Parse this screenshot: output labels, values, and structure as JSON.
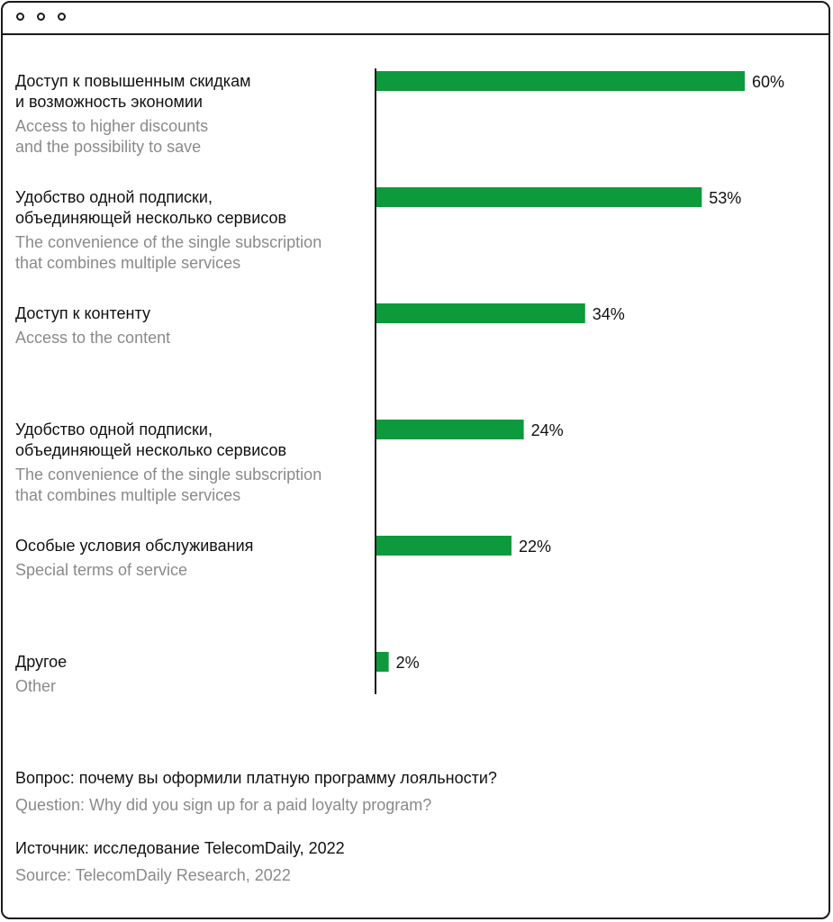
{
  "window": {
    "controls": [
      "dot-1",
      "dot-2",
      "dot-3"
    ]
  },
  "chart_data": {
    "type": "bar",
    "orientation": "horizontal",
    "categories": [
      {
        "ru": "Доступ к повышенным скидкам\nи возможность экономии",
        "en": "Access to higher discounts\nand the possibility to save"
      },
      {
        "ru": "Удобство одной подписки,\nобъединяющей несколько сервисов",
        "en": "The convenience of the single subscription\nthat combines multiple services"
      },
      {
        "ru": "Доступ к контенту",
        "en": "Access to the content"
      },
      {
        "ru": "Удобство одной подписки,\nобъединяющей несколько сервисов",
        "en": "The convenience of the single subscription\nthat combines multiple services"
      },
      {
        "ru": "Особые условия обслуживания",
        "en": "Special terms of service"
      },
      {
        "ru": "Другое",
        "en": "Other"
      }
    ],
    "values": [
      60,
      53,
      34,
      24,
      22,
      2
    ],
    "value_labels": [
      "60%",
      "53%",
      "34%",
      "24%",
      "22%",
      "2%"
    ],
    "unit": "%",
    "xlim": [
      0,
      60
    ],
    "grid": false,
    "bar_color": "#0d9a3c"
  },
  "footer": {
    "question_ru": "Вопрос: почему вы оформили платную программу лояльности?",
    "question_en": "Question: Why did you sign up for a paid loyalty program?",
    "source_ru": "Источник: исследование TelecomDaily, 2022",
    "source_en": "Source: TelecomDaily Research, 2022"
  }
}
